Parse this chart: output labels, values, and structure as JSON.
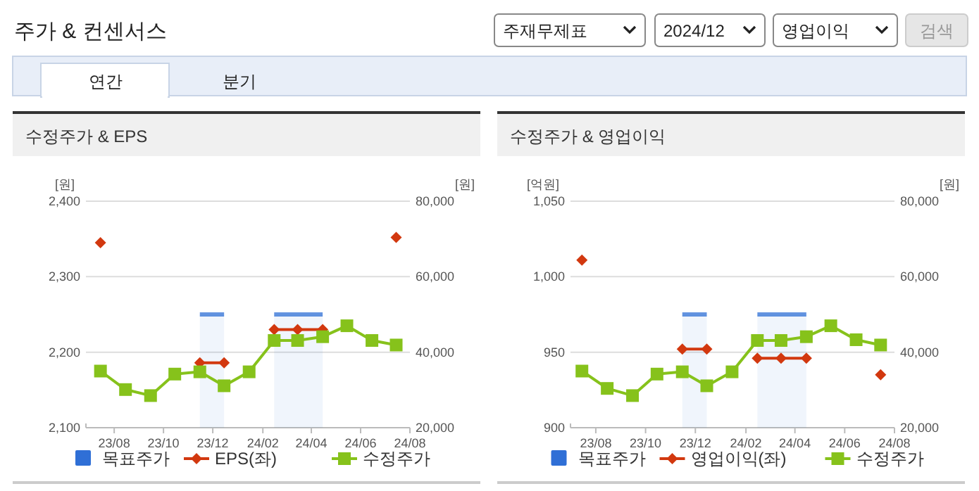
{
  "chart_data": [
    {
      "type": "other",
      "title": "주가 & 컨센서스",
      "annotations": [
        "주재무제표",
        "2024/12",
        "영업이익",
        "검색",
        "연간",
        "분기"
      ]
    },
    {
      "type": "line",
      "title": "수정주가 & EPS",
      "ylabel": "[원]",
      "y2label": "[원]",
      "x": [
        "2023-07-15",
        "2023-08-15",
        "2023-09-15",
        "2023-10-15",
        "2023-11-15",
        "2023-12-15",
        "2024-01-15",
        "2024-02-15",
        "2024-03-15",
        "2024-04-15",
        "2024-05-15",
        "2024-06-15",
        "2024-07-15"
      ],
      "xlim": [
        "2023-06-27",
        "2024-08-01"
      ],
      "xticks": [
        {
          "value": "2023-08-01",
          "label": "23/08"
        },
        {
          "value": "2023-10-01",
          "label": "23/10"
        },
        {
          "value": "2023-12-01",
          "label": "23/12"
        },
        {
          "value": "2024-02-01",
          "label": "24/02"
        },
        {
          "value": "2024-04-01",
          "label": "24/04"
        },
        {
          "value": "2024-06-01",
          "label": "24/06"
        },
        {
          "value": "2024-08-01",
          "label": "24/08"
        }
      ],
      "ylim": [
        2100,
        2400
      ],
      "yticks": [
        {
          "value": 2100,
          "label": "2,100"
        },
        {
          "value": 2200,
          "label": "2,200"
        },
        {
          "value": 2300,
          "label": "2,300"
        },
        {
          "value": 2400,
          "label": "2,400"
        }
      ],
      "y2lim": [
        20000,
        80000
      ],
      "y2ticks": [
        {
          "value": 20000,
          "label": "20,000"
        },
        {
          "value": 40000,
          "label": "40,000"
        },
        {
          "value": 60000,
          "label": "60,000"
        },
        {
          "value": 80000,
          "label": "80,000"
        }
      ],
      "grid": "y",
      "legend": "bottom",
      "series": [
        {
          "name": "목표주가",
          "type": "area",
          "axis": "y2",
          "color": "#2f6fd6",
          "values": [
            null,
            null,
            null,
            null,
            50000,
            50000,
            null,
            50000,
            50000,
            50000,
            null,
            null,
            null
          ]
        },
        {
          "name": "EPS(좌)",
          "type": "line",
          "axis": "y",
          "marker": "diamond",
          "color": "#d2380f",
          "values": [
            2345,
            null,
            null,
            null,
            2186,
            2186,
            null,
            2230,
            2230,
            2230,
            null,
            null,
            2352
          ]
        },
        {
          "name": "수정주가",
          "type": "line",
          "axis": "y2",
          "marker": "square",
          "color": "#86c21b",
          "values": [
            35000,
            30100,
            28500,
            34200,
            34800,
            31100,
            34800,
            43100,
            43100,
            44100,
            47000,
            43100,
            41900
          ]
        }
      ]
    },
    {
      "type": "line",
      "title": "수정주가 & 영업이익",
      "ylabel": "[억원]",
      "y2label": "[원]",
      "x": [
        "2023-07-15",
        "2023-08-15",
        "2023-09-15",
        "2023-10-15",
        "2023-11-15",
        "2023-12-15",
        "2024-01-15",
        "2024-02-15",
        "2024-03-15",
        "2024-04-15",
        "2024-05-15",
        "2024-06-15",
        "2024-07-15"
      ],
      "xlim": [
        "2023-07-01",
        "2024-08-01"
      ],
      "xticks": [
        {
          "value": "2023-08-01",
          "label": "23/08"
        },
        {
          "value": "2023-10-01",
          "label": "23/10"
        },
        {
          "value": "2023-12-01",
          "label": "23/12"
        },
        {
          "value": "2024-02-01",
          "label": "24/02"
        },
        {
          "value": "2024-04-01",
          "label": "24/04"
        },
        {
          "value": "2024-06-01",
          "label": "24/06"
        },
        {
          "value": "2024-08-01",
          "label": "24/08"
        }
      ],
      "ylim": [
        900,
        1050
      ],
      "yticks": [
        {
          "value": 900,
          "label": "900"
        },
        {
          "value": 950,
          "label": "950"
        },
        {
          "value": 1000,
          "label": "1,000"
        },
        {
          "value": 1050,
          "label": "1,050"
        }
      ],
      "y2lim": [
        20000,
        80000
      ],
      "y2ticks": [
        {
          "value": 20000,
          "label": "20,000"
        },
        {
          "value": 40000,
          "label": "40,000"
        },
        {
          "value": 60000,
          "label": "60,000"
        },
        {
          "value": 80000,
          "label": "80,000"
        }
      ],
      "grid": "y",
      "legend": "bottom",
      "series": [
        {
          "name": "목표주가",
          "type": "area",
          "axis": "y2",
          "color": "#2f6fd6",
          "values": [
            null,
            null,
            null,
            null,
            50000,
            50000,
            null,
            50000,
            50000,
            50000,
            null,
            null,
            null
          ]
        },
        {
          "name": "영업이익(좌)",
          "type": "line",
          "axis": "y",
          "marker": "diamond",
          "color": "#d2380f",
          "values": [
            1011,
            null,
            null,
            null,
            952,
            952,
            null,
            946,
            946,
            946,
            null,
            null,
            935
          ]
        },
        {
          "name": "수정주가",
          "type": "line",
          "axis": "y2",
          "marker": "square",
          "color": "#86c21b",
          "values": [
            35000,
            30400,
            28500,
            34200,
            34800,
            31100,
            34800,
            43100,
            43100,
            44100,
            47000,
            43300,
            41900
          ]
        }
      ]
    }
  ]
}
